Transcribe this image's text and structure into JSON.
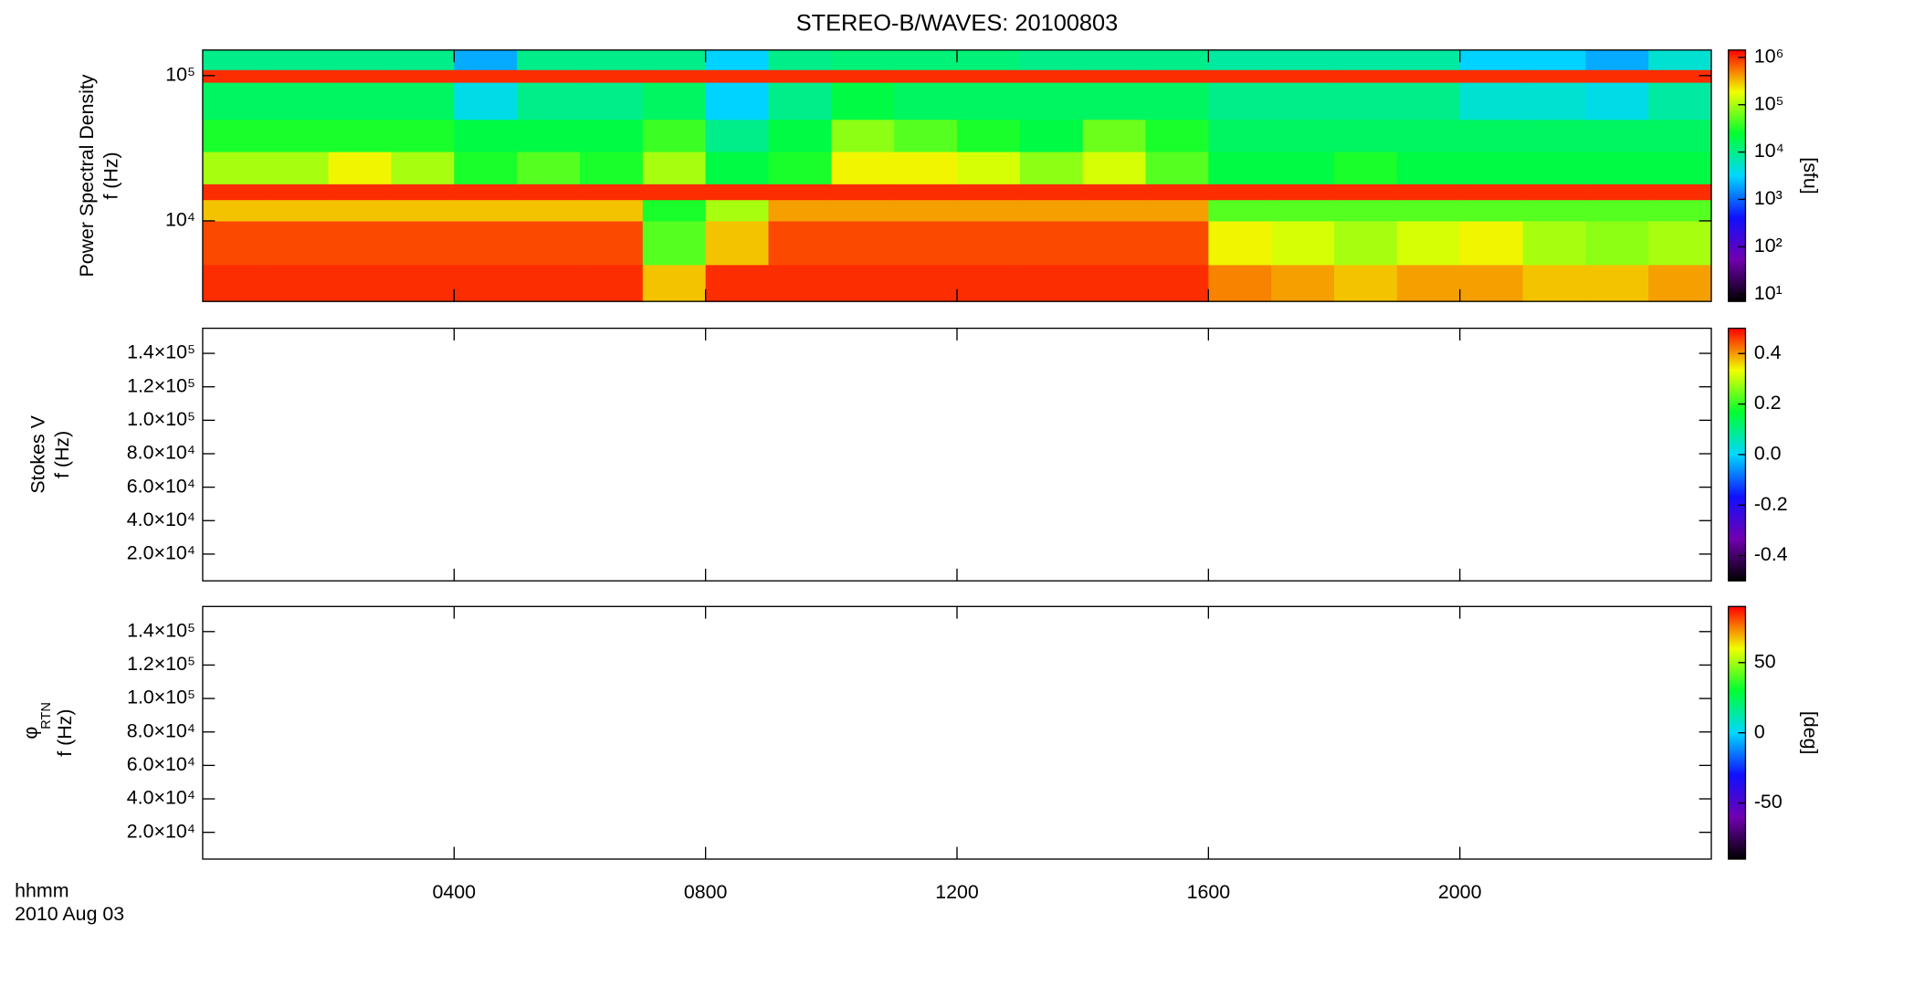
{
  "chart_data": {
    "type": "spectrogram",
    "title": "STEREO-B/WAVES: 20100803",
    "xlabel": [
      "hhmm",
      "2010 Aug 03"
    ],
    "xlim": [
      0,
      24
    ],
    "xticks": [
      {
        "value": 4,
        "label": "0400"
      },
      {
        "value": 8,
        "label": "0800"
      },
      {
        "value": 12,
        "label": "1200"
      },
      {
        "value": 16,
        "label": "1600"
      },
      {
        "value": 20,
        "label": "2000"
      }
    ],
    "x_edges": [
      0,
      1,
      2,
      3,
      4,
      5,
      6,
      7,
      8,
      9,
      10,
      11,
      12,
      13,
      14,
      15,
      16,
      17,
      18,
      19,
      20,
      21,
      22,
      23,
      24
    ],
    "colormap": [
      "#000000",
      "#7000b0",
      "#1010ff",
      "#00d8ff",
      "#00ff30",
      "#f0ff00",
      "#ff0000"
    ],
    "panels": [
      {
        "ylabel": [
          "Power Spectral Density",
          "f (Hz)"
        ],
        "ylog": true,
        "ylim": [
          2790,
          150000
        ],
        "yticks": [
          {
            "value": 10000,
            "label": "10⁴"
          },
          {
            "value": 100000,
            "label": "10⁵"
          }
        ],
        "y_edges": [
          2790,
          5000,
          10000,
          14000,
          18000,
          30000,
          50000,
          90000,
          110000,
          150000
        ],
        "zlog": true,
        "zlim": [
          7,
          1430000
        ],
        "zlabel": "[sfu]",
        "zticks": [
          {
            "value": 10,
            "label": "10¹"
          },
          {
            "value": 100,
            "label": "10²"
          },
          {
            "value": 1000,
            "label": "10³"
          },
          {
            "value": 10000,
            "label": "10⁴"
          },
          {
            "value": 100000,
            "label": "10⁵"
          },
          {
            "value": 1000000,
            "label": "10⁶"
          }
        ],
        "z": [
          [
            1000000,
            1000000,
            1000000,
            1000000,
            1000000,
            1000000,
            1000000,
            300000,
            1000000,
            1000000,
            1000000,
            1000000,
            1000000,
            1000000,
            1000000,
            1000000,
            500000,
            400000,
            300000,
            400000,
            400000,
            300000,
            300000,
            400000
          ],
          [
            800000,
            800000,
            800000,
            800000,
            800000,
            800000,
            800000,
            50000,
            300000,
            800000,
            800000,
            800000,
            800000,
            800000,
            800000,
            800000,
            200000,
            150000,
            100000,
            150000,
            200000,
            100000,
            80000,
            100000
          ],
          [
            300000,
            300000,
            300000,
            300000,
            300000,
            300000,
            300000,
            30000,
            100000,
            400000,
            400000,
            400000,
            400000,
            400000,
            400000,
            400000,
            50000,
            50000,
            50000,
            50000,
            50000,
            50000,
            50000,
            50000
          ],
          [
            1000000,
            1000000,
            1000000,
            1000000,
            1000000,
            1000000,
            1000000,
            1000000,
            1000000,
            1000000,
            1000000,
            1000000,
            1000000,
            1000000,
            1000000,
            1000000,
            1000000,
            1000000,
            1000000,
            1000000,
            1000000,
            1000000,
            1000000,
            1000000
          ],
          [
            100000,
            100000,
            200000,
            100000,
            30000,
            50000,
            30000,
            100000,
            20000,
            30000,
            200000,
            200000,
            150000,
            80000,
            150000,
            50000,
            20000,
            20000,
            30000,
            20000,
            20000,
            20000,
            20000,
            20000
          ],
          [
            30000,
            30000,
            30000,
            30000,
            20000,
            20000,
            20000,
            40000,
            10000,
            20000,
            80000,
            50000,
            30000,
            20000,
            60000,
            30000,
            15000,
            15000,
            15000,
            15000,
            15000,
            15000,
            15000,
            15000
          ],
          [
            15000,
            15000,
            15000,
            15000,
            4000,
            10000,
            10000,
            15000,
            3000,
            10000,
            20000,
            15000,
            15000,
            15000,
            15000,
            15000,
            10000,
            10000,
            10000,
            10000,
            5000,
            5000,
            4000,
            8000
          ],
          [
            1000000,
            1000000,
            1000000,
            1000000,
            1000000,
            1000000,
            1000000,
            1000000,
            1000000,
            1000000,
            1000000,
            1000000,
            1000000,
            1000000,
            1000000,
            1000000,
            1000000,
            1000000,
            1000000,
            1000000,
            1000000,
            1000000,
            1000000,
            1000000
          ],
          [
            10000,
            10000,
            10000,
            10000,
            2000,
            10000,
            10000,
            10000,
            3000,
            10000,
            12000,
            12000,
            12000,
            10000,
            10000,
            10000,
            8000,
            8000,
            8000,
            8000,
            3000,
            3000,
            2000,
            5000
          ]
        ]
      },
      {
        "ylabel": [
          "Stokes V",
          "f (Hz)"
        ],
        "ylim": [
          4000,
          155000
        ],
        "yticks": [
          {
            "value": 20000,
            "label": "2.0×10⁴"
          },
          {
            "value": 40000,
            "label": "4.0×10⁴"
          },
          {
            "value": 60000,
            "label": "6.0×10⁴"
          },
          {
            "value": 80000,
            "label": "8.0×10⁴"
          },
          {
            "value": 100000,
            "label": "1.0×10⁵"
          },
          {
            "value": 120000,
            "label": "1.2×10⁵"
          },
          {
            "value": 140000,
            "label": "1.4×10⁵"
          }
        ],
        "zlim": [
          -0.5,
          0.5
        ],
        "zticks": [
          -0.4,
          -0.2,
          {
            "value": 0,
            "label": "0.0"
          },
          0.2,
          0.4
        ]
      },
      {
        "ylabel": [
          "φ",
          "f (Hz)"
        ],
        "ylabel_sub": "RTN",
        "ylim": [
          4000,
          155000
        ],
        "yticks": [
          {
            "value": 20000,
            "label": "2.0×10⁴"
          },
          {
            "value": 40000,
            "label": "4.0×10⁴"
          },
          {
            "value": 60000,
            "label": "6.0×10⁴"
          },
          {
            "value": 80000,
            "label": "8.0×10⁴"
          },
          {
            "value": 100000,
            "label": "1.0×10⁵"
          },
          {
            "value": 120000,
            "label": "1.2×10⁵"
          },
          {
            "value": 140000,
            "label": "1.4×10⁵"
          }
        ],
        "zlim": [
          -90,
          90
        ],
        "zlabel": "[deg]",
        "zticks": [
          -50,
          0,
          50
        ]
      }
    ]
  }
}
